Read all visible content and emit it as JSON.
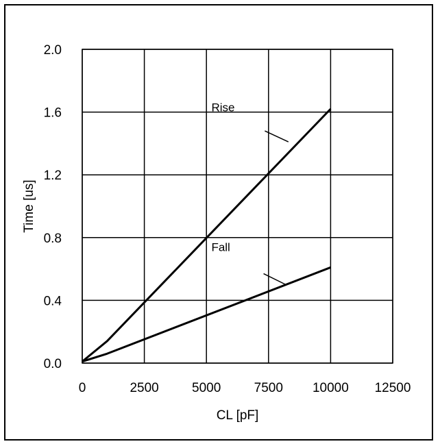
{
  "chart_data": {
    "type": "line",
    "xlabel": "CL [pF]",
    "ylabel": "Time [us]",
    "xlim": [
      0,
      12500
    ],
    "ylim": [
      0,
      2.0
    ],
    "x_ticks": [
      "0",
      "2500",
      "5000",
      "7500",
      "10000",
      "12500"
    ],
    "y_ticks": [
      "0.0",
      "0.4",
      "0.8",
      "1.2",
      "1.6",
      "2.0"
    ],
    "x_tick_values": [
      0,
      2500,
      5000,
      7500,
      10000,
      12500
    ],
    "y_tick_values": [
      0,
      0.4,
      0.8,
      1.2,
      1.6,
      2.0
    ],
    "grid": true,
    "series": [
      {
        "name": "Rise",
        "x": [
          0,
          1000,
          10000
        ],
        "y": [
          0.01,
          0.14,
          1.62
        ]
      },
      {
        "name": "Fall",
        "x": [
          0,
          1000,
          10000
        ],
        "y": [
          0.01,
          0.06,
          0.61
        ]
      }
    ],
    "annotations": [
      {
        "text": "Rise",
        "leader_from": [
          7350,
          1.48
        ],
        "leader_to": [
          8300,
          1.41
        ]
      },
      {
        "text": "Fall",
        "leader_from": [
          7300,
          0.57
        ],
        "leader_to": [
          8200,
          0.5
        ]
      }
    ],
    "annotation_label_pos": [
      {
        "x": 5200,
        "y": 1.63
      },
      {
        "x": 5200,
        "y": 0.74
      }
    ]
  }
}
